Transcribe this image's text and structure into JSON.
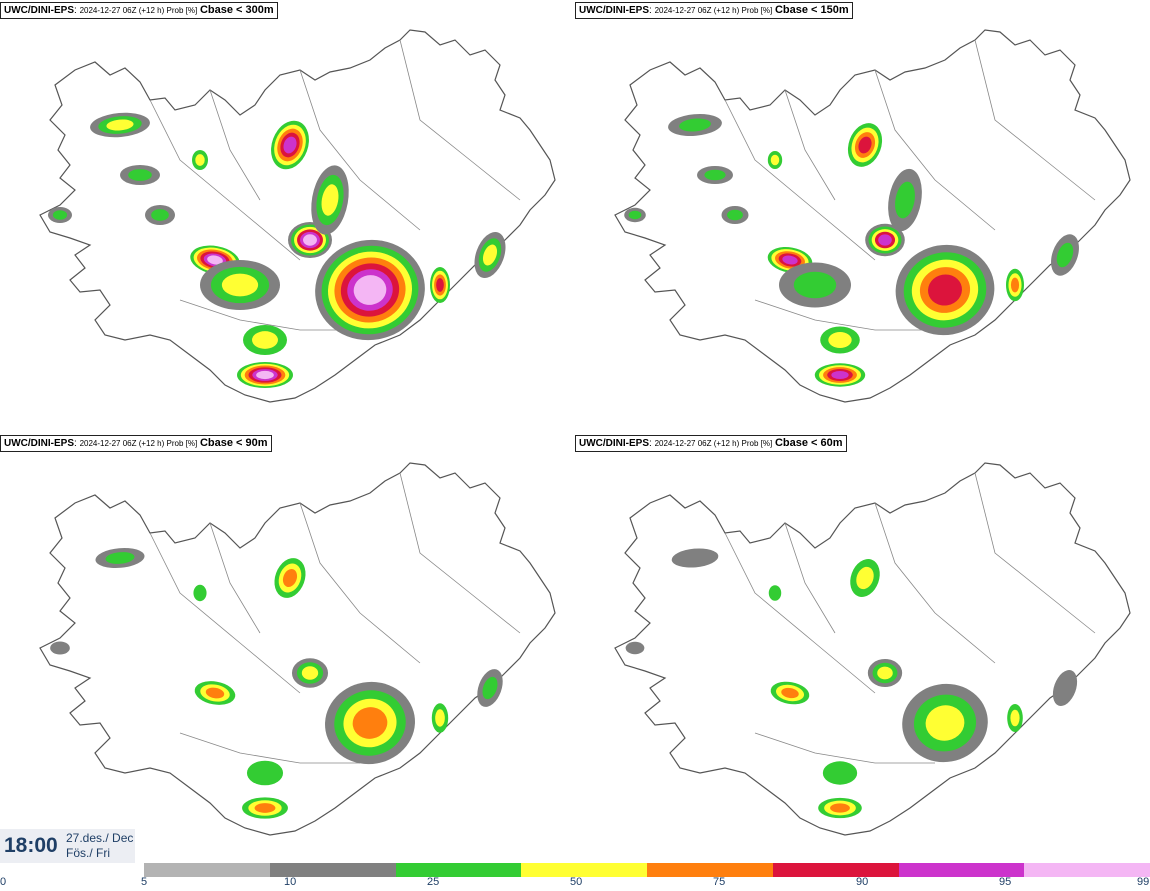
{
  "panels": [
    {
      "model": "UWC/DINI-EPS",
      "meta": "2024-12-27 06Z (+12 h) Prob [%]",
      "variable": "Cbase < 300m",
      "intensity": 1.0
    },
    {
      "model": "UWC/DINI-EPS",
      "meta": "2024-12-27 06Z (+12 h) Prob [%]",
      "variable": "Cbase < 150m",
      "intensity": 0.75
    },
    {
      "model": "UWC/DINI-EPS",
      "meta": "2024-12-27 06Z (+12 h) Prob [%]",
      "variable": "Cbase < 90m",
      "intensity": 0.55
    },
    {
      "model": "UWC/DINI-EPS",
      "meta": "2024-12-27 06Z (+12 h) Prob [%]",
      "variable": "Cbase < 60m",
      "intensity": 0.45
    }
  ],
  "timestamp": {
    "time": "18:00",
    "date_line1": "27.des./ Dec",
    "date_line2": "Fös./ Fri"
  },
  "colorbar": {
    "labels": [
      "0",
      "5",
      "10",
      "25",
      "50",
      "75",
      "90",
      "95",
      "99"
    ],
    "colors": [
      "#b3b3b3",
      "#808080",
      "#33cc33",
      "#ffff33",
      "#ff7f0e",
      "#dc143c",
      "#cc33cc",
      "#f4b6f4"
    ]
  }
}
